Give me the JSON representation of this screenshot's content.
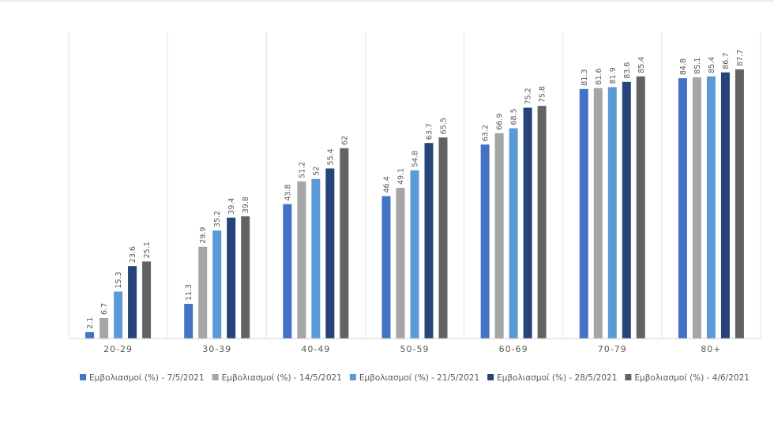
{
  "chart_data": {
    "type": "bar",
    "categories": [
      "20-29",
      "30-39",
      "40-49",
      "50-59",
      "60-69",
      "70-79",
      "80+"
    ],
    "series": [
      {
        "name": "Εμβολιασμοί (%) - 7/5/2021",
        "color": "#4472C4",
        "values": [
          2.1,
          11.3,
          43.8,
          46.4,
          63.2,
          81.3,
          84.8
        ]
      },
      {
        "name": "Εμβολιασμοί (%) - 14/5/2021",
        "color": "#A5A5A5",
        "values": [
          6.7,
          29.9,
          51.2,
          49.1,
          66.9,
          81.6,
          85.1
        ]
      },
      {
        "name": "Εμβολιασμοί (%) - 21/5/2021",
        "color": "#5B9BD5",
        "values": [
          15.3,
          35.2,
          52,
          54.8,
          68.5,
          81.9,
          85.4
        ]
      },
      {
        "name": "Εμβολιασμοί (%) - 28/5/2021",
        "color": "#264478",
        "values": [
          23.6,
          39.4,
          55.4,
          63.7,
          75.2,
          83.6,
          86.7
        ]
      },
      {
        "name": "Εμβολιασμοί (%) - 4/6/2021",
        "color": "#636363",
        "values": [
          25.1,
          39.8,
          62,
          65.5,
          75.8,
          85.4,
          87.7
        ]
      }
    ],
    "ylim": [
      0,
      100
    ],
    "grid": "vertical",
    "legend": "bottom"
  }
}
